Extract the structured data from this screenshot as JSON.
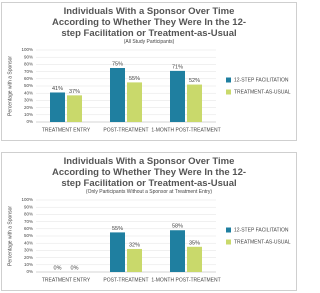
{
  "chart_data": [
    {
      "type": "bar",
      "title": "Individuals With a Sponsor Over Time According to Whether They Were In the 12-step Facilitation or Treatment-as-Usual",
      "subtitle": "(All Study Participants)",
      "y_label": "Percentage with a Sponsor",
      "categories": [
        "TREATMENT ENTRY",
        "POST-TREATMENT",
        "1-MONTH POST-TREATMENT"
      ],
      "series": [
        {
          "name": "12-STEP FACILITATION",
          "color": "#1f7fa0",
          "values": [
            41,
            75,
            71
          ],
          "value_labels": [
            "41%",
            "75%",
            "71%"
          ]
        },
        {
          "name": "TREATMENT-AS-USUAL",
          "color": "#c9d96b",
          "values": [
            37,
            55,
            52
          ],
          "value_labels": [
            "37%",
            "55%",
            "52%"
          ]
        }
      ],
      "ylim": [
        0,
        100
      ],
      "yticks": [
        {
          "value": 0,
          "label": "0%"
        },
        {
          "value": 10,
          "label": "10%"
        },
        {
          "value": 20,
          "label": "20%"
        },
        {
          "value": 30,
          "label": "30%"
        },
        {
          "value": 40,
          "label": "40%"
        },
        {
          "value": 50,
          "label": "50%"
        },
        {
          "value": 60,
          "label": "60%"
        },
        {
          "value": 70,
          "label": "70%"
        },
        {
          "value": 80,
          "label": "80%"
        },
        {
          "value": 90,
          "label": "90%"
        },
        {
          "value": 100,
          "label": "100%"
        }
      ],
      "grid": true,
      "legend": "right"
    },
    {
      "type": "bar",
      "title": "Individuals With a Sponsor Over Time According to Whether They Were In the 12-step Facilitation or Treatment-as-Usual",
      "subtitle": "(Only Participants Without a Sponsor at Treatment Entry)",
      "y_label": "Percentage with a Sponsor",
      "categories": [
        "TREATMENT ENTRY",
        "POST-TREATMENT",
        "1-MONTH POST-TREATMENT"
      ],
      "series": [
        {
          "name": "12-STEP FACILITATION",
          "color": "#1f7fa0",
          "values": [
            0,
            55,
            58
          ],
          "value_labels": [
            "0%",
            "55%",
            "58%"
          ]
        },
        {
          "name": "TREATMENT-AS-USUAL",
          "color": "#c9d96b",
          "values": [
            0,
            32,
            35
          ],
          "value_labels": [
            "0%",
            "32%",
            "35%"
          ]
        }
      ],
      "ylim": [
        0,
        100
      ],
      "yticks": [
        {
          "value": 0,
          "label": "0%"
        },
        {
          "value": 10,
          "label": "10%"
        },
        {
          "value": 20,
          "label": "20%"
        },
        {
          "value": 30,
          "label": "30%"
        },
        {
          "value": 40,
          "label": "40%"
        },
        {
          "value": 50,
          "label": "50%"
        },
        {
          "value": 60,
          "label": "60%"
        },
        {
          "value": 70,
          "label": "70%"
        },
        {
          "value": 80,
          "label": "80%"
        },
        {
          "value": 90,
          "label": "90%"
        },
        {
          "value": 100,
          "label": "100%"
        }
      ],
      "grid": true,
      "legend": "right"
    }
  ]
}
